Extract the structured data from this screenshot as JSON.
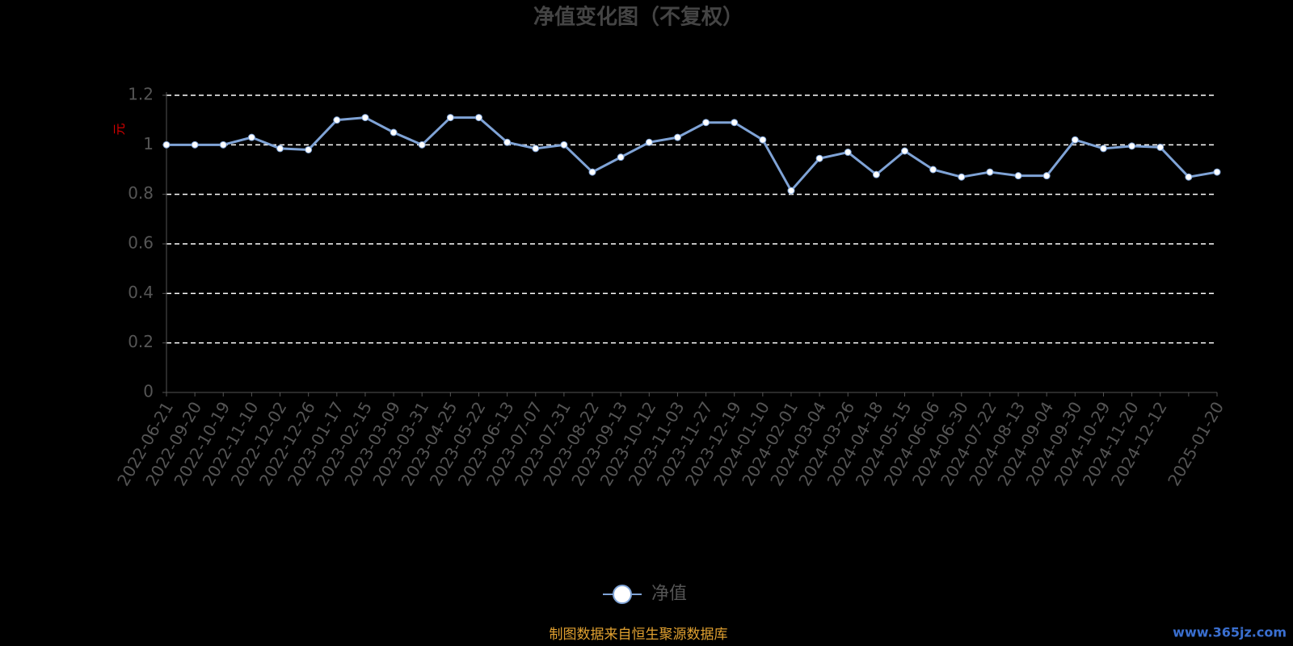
{
  "chart_data": {
    "type": "line",
    "title": "净值变化图（不复权）",
    "y_label": "元",
    "categories": [
      "2022-06-21",
      "2022-09-20",
      "2022-10-19",
      "2022-11-10",
      "2022-12-02",
      "2022-12-26",
      "2023-01-17",
      "2023-02-15",
      "2023-03-09",
      "2023-03-31",
      "2023-04-25",
      "2023-05-22",
      "2023-06-13",
      "2023-07-07",
      "2023-07-31",
      "2023-08-22",
      "2023-09-13",
      "2023-10-12",
      "2023-11-03",
      "2023-11-27",
      "2023-12-19",
      "2024-01-10",
      "2024-02-01",
      "2024-03-04",
      "2024-03-26",
      "2024-04-18",
      "2024-05-15",
      "2024-06-06",
      "2024-06-30",
      "2024-07-22",
      "2024-08-13",
      "2024-09-04",
      "2024-09-30",
      "2024-10-29",
      "2024-11-20",
      "2024-12-12",
      null,
      "2025-01-20"
    ],
    "series": [
      {
        "name": "净值",
        "color": "#7fa3d6",
        "values": [
          1.0,
          1.0,
          1.0,
          1.03,
          0.985,
          0.98,
          1.1,
          1.11,
          1.05,
          1.0,
          1.11,
          1.11,
          1.01,
          0.985,
          1.0,
          0.89,
          0.95,
          1.01,
          1.03,
          1.09,
          1.09,
          1.02,
          0.815,
          0.945,
          0.97,
          0.88,
          0.975,
          0.9,
          0.87,
          0.89,
          0.875,
          0.875,
          1.02,
          0.985,
          0.995,
          0.99,
          0.87,
          0.89
        ]
      }
    ],
    "ylim": [
      0,
      1.2
    ],
    "yticks": [
      0,
      0.2,
      0.4,
      0.6,
      0.8,
      1,
      1.2
    ],
    "grid": true,
    "source": "制图数据来自恒生聚源数据库",
    "watermark": "www.365jz.com"
  }
}
